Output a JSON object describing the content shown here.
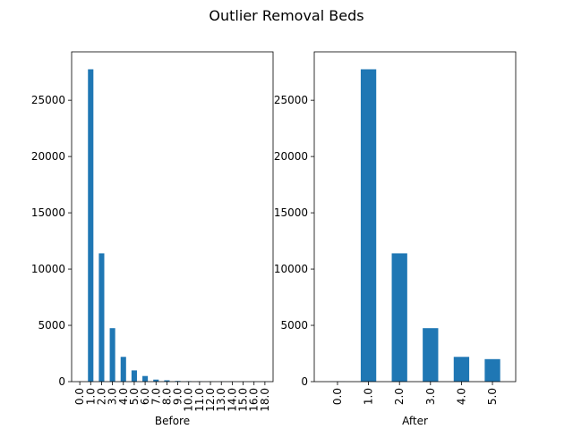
{
  "figure": {
    "suptitle": "Outlier Removal Beds"
  },
  "colors": {
    "bar": "#1f77b4",
    "axis": "#000000",
    "background": "#ffffff"
  },
  "chart_data": [
    {
      "type": "bar",
      "title": "",
      "xlabel": "Before",
      "ylabel": "",
      "categories": [
        "0.0",
        "1.0",
        "2.0",
        "3.0",
        "4.0",
        "5.0",
        "6.0",
        "7.0",
        "8.0",
        "9.0",
        "10.0",
        "11.0",
        "12.0",
        "13.0",
        "14.0",
        "15.0",
        "16.0",
        "18.0"
      ],
      "values": [
        10,
        27750,
        11400,
        4750,
        2200,
        1000,
        500,
        180,
        120,
        60,
        40,
        20,
        15,
        10,
        10,
        5,
        5,
        5
      ],
      "ylim": [
        0,
        29300
      ],
      "yticks": [
        0,
        5000,
        10000,
        15000,
        20000,
        25000
      ],
      "grid": false,
      "tick_label_rotation": 90
    },
    {
      "type": "bar",
      "title": "",
      "xlabel": "After",
      "ylabel": "",
      "categories": [
        "0.0",
        "1.0",
        "2.0",
        "3.0",
        "4.0",
        "5.0"
      ],
      "values": [
        10,
        27750,
        11400,
        4750,
        2200,
        2000
      ],
      "ylim": [
        0,
        29300
      ],
      "yticks": [
        0,
        5000,
        10000,
        15000,
        20000,
        25000
      ],
      "grid": false,
      "tick_label_rotation": 90
    }
  ]
}
